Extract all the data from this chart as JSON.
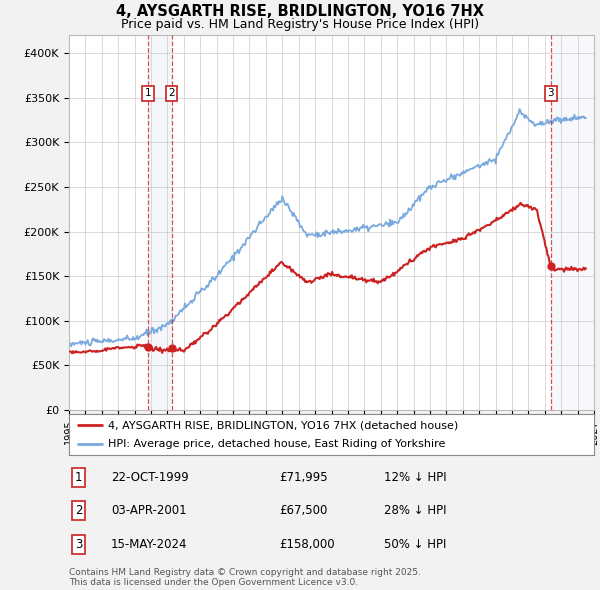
{
  "title": "4, AYSGARTH RISE, BRIDLINGTON, YO16 7HX",
  "subtitle": "Price paid vs. HM Land Registry's House Price Index (HPI)",
  "ylim": [
    0,
    420000
  ],
  "yticks": [
    0,
    50000,
    100000,
    150000,
    200000,
    250000,
    300000,
    350000,
    400000
  ],
  "ytick_labels": [
    "£0",
    "£50K",
    "£100K",
    "£150K",
    "£200K",
    "£250K",
    "£300K",
    "£350K",
    "£400K"
  ],
  "bg_color": "#f2f2f2",
  "plot_bg_color": "#ffffff",
  "hpi_color": "#7aaadd",
  "price_color": "#cc2222",
  "vline_color": "#cc3333",
  "shade_color": "#aabbdd",
  "transactions": [
    {
      "date": "22-OCT-1999",
      "year_num": 1999.81,
      "price": 71995,
      "label": "1",
      "pct": "12% ↓ HPI"
    },
    {
      "date": "03-APR-2001",
      "year_num": 2001.25,
      "price": 67500,
      "label": "2",
      "pct": "28% ↓ HPI"
    },
    {
      "date": "15-MAY-2024",
      "year_num": 2024.37,
      "price": 158000,
      "label": "3",
      "pct": "50% ↓ HPI"
    }
  ],
  "legend_entries": [
    "4, AYSGARTH RISE, BRIDLINGTON, YO16 7HX (detached house)",
    "HPI: Average price, detached house, East Riding of Yorkshire"
  ],
  "footer_text": "Contains HM Land Registry data © Crown copyright and database right 2025.\nThis data is licensed under the Open Government Licence v3.0.",
  "xmin": 1995,
  "xmax": 2027
}
